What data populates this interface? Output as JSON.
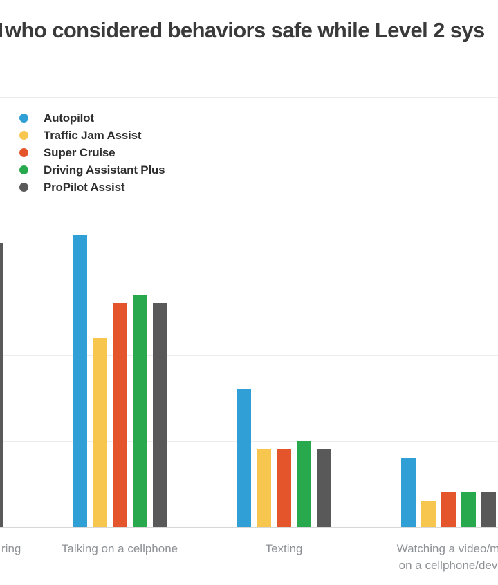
{
  "chart_data": {
    "type": "bar",
    "title": "who considered behaviors safe while Level 2 sys",
    "categories": [
      "ring",
      "Talking on a cellphone",
      "Texting",
      "Watching a video/m on a cellphone/dev"
    ],
    "category_label_lines": [
      [
        "ring"
      ],
      [
        "Talking on a cellphone"
      ],
      [
        "Texting"
      ],
      [
        "Watching a video/m",
        "on a cellphone/dev"
      ]
    ],
    "series": [
      {
        "name": "Autopilot",
        "color": "#2f9fd6",
        "values": [
          null,
          34,
          16,
          8
        ]
      },
      {
        "name": "Traffic Jam Assist",
        "color": "#f6c64f",
        "values": [
          null,
          22,
          9,
          3
        ]
      },
      {
        "name": "Super Cruise",
        "color": "#e5552b",
        "values": [
          null,
          26,
          9,
          4
        ]
      },
      {
        "name": "Driving Assistant Plus",
        "color": "#28a94d",
        "values": [
          null,
          27,
          10,
          4
        ]
      },
      {
        "name": "ProPilot Assist",
        "color": "#595959",
        "values": [
          33,
          26,
          9,
          4
        ]
      }
    ],
    "ylim": [
      0,
      50
    ],
    "gridline_interval": 10,
    "unit": "percent",
    "grid": true,
    "legend_position": "top-left",
    "axis_tick_labels_visible": false
  }
}
